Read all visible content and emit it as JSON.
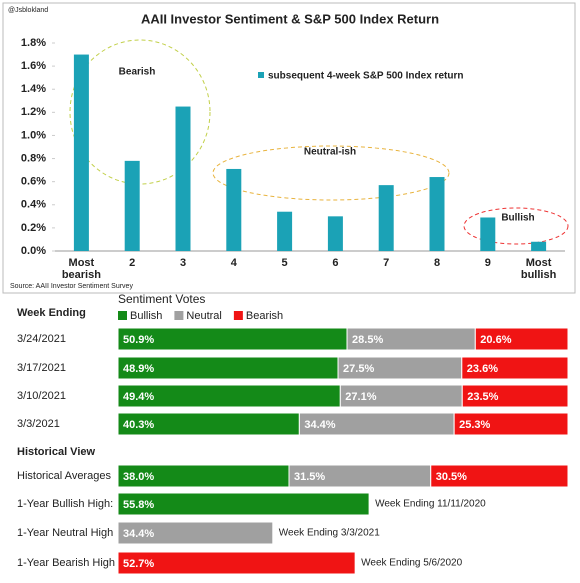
{
  "chart_data": [
    {
      "type": "bar",
      "title": "AAII Investor Sentiment & S&P 500 Index Return",
      "watermark": "@Jsblokland",
      "source": "Source: AAII Investor Sentiment Survey",
      "categories": [
        "Most bearish",
        "2",
        "3",
        "4",
        "5",
        "6",
        "7",
        "8",
        "9",
        "Most bullish"
      ],
      "series": [
        {
          "name": "subsequent 4-week S&P 500 Index return",
          "color": "#1ba2b6",
          "values": [
            1.7,
            0.78,
            1.25,
            0.71,
            0.34,
            0.3,
            0.57,
            0.64,
            0.29,
            0.08
          ]
        }
      ],
      "ylim": [
        0,
        1.8
      ],
      "yticks": [
        {
          "value": 0,
          "label": "0.0%"
        },
        {
          "value": 0.2,
          "label": "0.2%"
        },
        {
          "value": 0.4,
          "label": "0.4%"
        },
        {
          "value": 0.6,
          "label": "0.6%"
        },
        {
          "value": 0.8,
          "label": "0.8%"
        },
        {
          "value": 1.0,
          "label": "1.0%"
        },
        {
          "value": 1.2,
          "label": "1.2%"
        },
        {
          "value": 1.4,
          "label": "1.4%"
        },
        {
          "value": 1.6,
          "label": "1.6%"
        },
        {
          "value": 1.8,
          "label": "1.8%"
        }
      ],
      "annotations": [
        {
          "text": "Bearish",
          "color": "#a9bb2f"
        },
        {
          "text": "Neutral-ish",
          "color": "#e0a52a"
        },
        {
          "text": "Bullish",
          "color": "#e51b1b"
        }
      ]
    },
    {
      "type": "stacked-barh",
      "title": "Sentiment Votes",
      "group": "Week Ending",
      "xlim": [
        0,
        100
      ],
      "categories": [
        "3/24/2021",
        "3/17/2021",
        "3/10/2021",
        "3/3/2021"
      ],
      "series": [
        {
          "name": "Bullish",
          "color": "#148a18",
          "values": [
            50.9,
            48.9,
            49.4,
            40.3
          ],
          "value_labels": [
            "50.9%",
            "48.9%",
            "49.4%",
            "40.3%"
          ]
        },
        {
          "name": "Neutral",
          "color": "#a0a0a0",
          "values": [
            28.5,
            27.5,
            27.1,
            34.4
          ],
          "value_labels": [
            "28.5%",
            "27.5%",
            "27.1%",
            "34.4%"
          ]
        },
        {
          "name": "Bearish",
          "color": "#f01414",
          "values": [
            20.6,
            23.6,
            23.5,
            25.3
          ],
          "value_labels": [
            "20.6%",
            "23.6%",
            "23.5%",
            "25.3%"
          ]
        }
      ]
    },
    {
      "type": "stacked-barh",
      "group": "Historical View",
      "xlim": [
        0,
        100
      ],
      "categories": [
        "Historical Averages",
        "1-Year Bullish High:",
        "1-Year Neutral High",
        "1-Year Bearish High"
      ],
      "notes": [
        null,
        "Week Ending 11/11/2020",
        "Week Ending 3/3/2021",
        "Week Ending 5/6/2020"
      ],
      "series": [
        {
          "color": "#148a18",
          "values": [
            38.0,
            55.8,
            null,
            null
          ],
          "value_labels": [
            "38.0%",
            "55.8%",
            null,
            null
          ]
        },
        {
          "color": "#a0a0a0",
          "values": [
            31.5,
            null,
            34.4,
            null
          ],
          "value_labels": [
            "31.5%",
            null,
            "34.4%",
            null
          ]
        },
        {
          "color": "#f01414",
          "values": [
            30.5,
            null,
            null,
            52.7
          ],
          "value_labels": [
            "30.5%",
            null,
            null,
            "52.7%"
          ]
        }
      ]
    }
  ]
}
